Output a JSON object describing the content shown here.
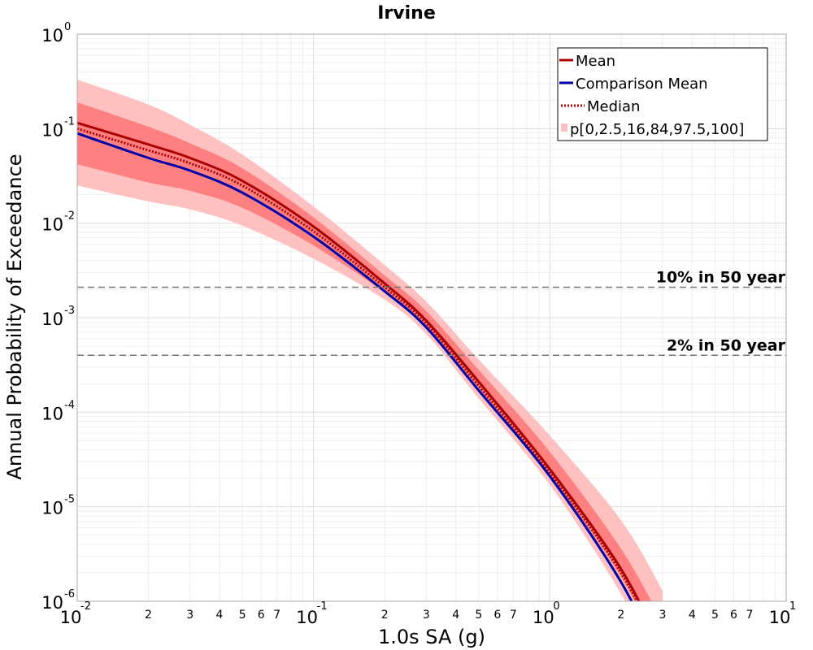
{
  "chart_data": {
    "type": "line",
    "title": "Irvine",
    "xlabel": "1.0s SA (g)",
    "ylabel": "Annual Probability of Exceedance",
    "xscale": "log",
    "yscale": "log",
    "xlim": [
      0.01,
      10
    ],
    "ylim": [
      1e-06,
      1
    ],
    "grid": true,
    "legend_position": "top-right",
    "x_major_ticks": [
      {
        "value": 0.01,
        "base": "10",
        "exp": "-2"
      },
      {
        "value": 0.1,
        "base": "10",
        "exp": "-1"
      },
      {
        "value": 1,
        "base": "10",
        "exp": "0"
      },
      {
        "value": 10,
        "base": "10",
        "exp": "1"
      }
    ],
    "y_major_ticks": [
      {
        "value": 1,
        "base": "10",
        "exp": "0"
      },
      {
        "value": 0.1,
        "base": "10",
        "exp": "-1"
      },
      {
        "value": 0.01,
        "base": "10",
        "exp": "-2"
      },
      {
        "value": 0.001,
        "base": "10",
        "exp": "-3"
      },
      {
        "value": 0.0001,
        "base": "10",
        "exp": "-4"
      },
      {
        "value": 1e-05,
        "base": "10",
        "exp": "-5"
      },
      {
        "value": 1e-06,
        "base": "10",
        "exp": "-6"
      }
    ],
    "x_minor_tick_labels": [
      "2",
      "3",
      "4",
      "5",
      "6",
      "7"
    ],
    "x": [
      0.01,
      0.02,
      0.03,
      0.05,
      0.1,
      0.2,
      0.3,
      0.5,
      1.0,
      2.0,
      3.0
    ],
    "series": [
      {
        "name": "Mean",
        "color": "#aa0000",
        "style": "solid",
        "values": [
          0.115,
          0.068,
          0.049,
          0.028,
          0.0092,
          0.0023,
          0.00093,
          0.00021,
          2.5e-05,
          2.2e-06,
          3e-07
        ]
      },
      {
        "name": "Comparison Mean",
        "color": "#0000aa",
        "style": "solid",
        "values": [
          0.089,
          0.049,
          0.036,
          0.021,
          0.0072,
          0.0019,
          0.00079,
          0.00017,
          2.1e-05,
          1.6e-06,
          2e-07
        ]
      },
      {
        "name": "Median",
        "color": "#aa0000",
        "style": "dotted",
        "values": [
          0.1,
          0.059,
          0.043,
          0.025,
          0.0082,
          0.0021,
          0.00087,
          0.00019,
          2.3e-05,
          2e-06,
          2.8e-07
        ]
      }
    ],
    "bands": {
      "name": "p[0,2.5,16,84,97.5,100]",
      "outer": {
        "color": "#ffc0c0",
        "lower": [
          0.025,
          0.017,
          0.014,
          0.0094,
          0.0042,
          0.00155,
          0.00067,
          0.00014,
          1.7e-05,
          1.2e-06,
          1.5e-07
        ],
        "upper": [
          0.33,
          0.18,
          0.11,
          0.053,
          0.015,
          0.0036,
          0.00148,
          0.00036,
          5.65e-05,
          7.2e-06,
          1.3e-06
        ]
      },
      "inner": {
        "color": "#ff8080",
        "lower": [
          0.042,
          0.027,
          0.022,
          0.0145,
          0.0058,
          0.00185,
          0.00079,
          0.00018,
          2.15e-05,
          1.8e-06,
          2.4e-07
        ],
        "upper": [
          0.19,
          0.105,
          0.07,
          0.038,
          0.0115,
          0.0028,
          0.00117,
          0.00028,
          3.8e-05,
          3.6e-06,
          6e-07
        ]
      }
    },
    "reference_lines": [
      {
        "label": "10% in 50 year",
        "value": 0.0021
      },
      {
        "label": "2% in 50 year",
        "value": 0.0004
      }
    ]
  }
}
